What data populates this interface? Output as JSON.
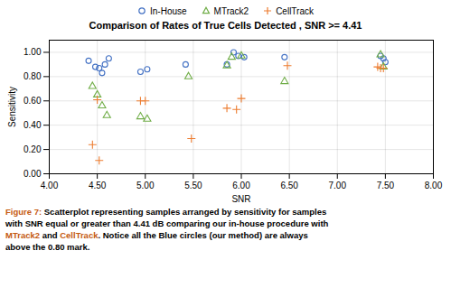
{
  "chart_data": {
    "type": "scatter",
    "title": "Comparison of Rates of True Cells Detected , SNR >= 4.41",
    "xlabel": "SNR",
    "ylabel": "Sensitivity",
    "xlim": [
      4.0,
      8.0
    ],
    "ylim": [
      0.0,
      1.1
    ],
    "xticks": [
      {
        "value": 4.0,
        "label": "4.00"
      },
      {
        "value": 4.5,
        "label": "4.50"
      },
      {
        "value": 5.0,
        "label": "5.00"
      },
      {
        "value": 5.5,
        "label": "5.50"
      },
      {
        "value": 6.0,
        "label": "6.00"
      },
      {
        "value": 6.5,
        "label": "6.50"
      },
      {
        "value": 7.0,
        "label": "7.00"
      },
      {
        "value": 7.5,
        "label": "7.50"
      },
      {
        "value": 8.0,
        "label": "8.00"
      }
    ],
    "yticks": [
      {
        "value": 0.0,
        "label": "0.00"
      },
      {
        "value": 0.2,
        "label": "0.20"
      },
      {
        "value": 0.4,
        "label": "0.40"
      },
      {
        "value": 0.6,
        "label": "0.60"
      },
      {
        "value": 0.8,
        "label": "0.80"
      },
      {
        "value": 1.0,
        "label": "1.00"
      }
    ],
    "grid": true,
    "legend": "top",
    "series": [
      {
        "name": "In-House",
        "color": "#4472c4",
        "marker": "circle",
        "x": [
          4.41,
          4.48,
          4.52,
          4.55,
          4.58,
          4.62,
          4.95,
          5.02,
          5.42,
          5.85,
          5.92,
          5.97,
          6.03,
          6.45,
          7.45,
          7.48,
          7.5
        ],
        "values": [
          0.93,
          0.88,
          0.87,
          0.83,
          0.9,
          0.95,
          0.84,
          0.86,
          0.9,
          0.9,
          1.0,
          0.97,
          0.96,
          0.96,
          0.97,
          0.95,
          0.92
        ]
      },
      {
        "name": "MTrack2",
        "color": "#70ad47",
        "marker": "triangle",
        "x": [
          4.45,
          4.5,
          4.55,
          4.6,
          4.95,
          5.02,
          5.45,
          5.85,
          5.9,
          6.0,
          6.45,
          7.45,
          7.48
        ],
        "values": [
          0.72,
          0.65,
          0.56,
          0.48,
          0.47,
          0.45,
          0.8,
          0.89,
          0.96,
          0.97,
          0.76,
          0.98,
          0.88
        ]
      },
      {
        "name": "CellTrack",
        "color": "#ed7d31",
        "marker": "plus",
        "x": [
          4.45,
          4.5,
          4.52,
          4.95,
          5.0,
          5.48,
          5.85,
          5.95,
          6.0,
          6.48,
          7.42,
          7.45,
          7.48
        ],
        "values": [
          0.24,
          0.61,
          0.11,
          0.6,
          0.6,
          0.29,
          0.54,
          0.53,
          0.62,
          0.89,
          0.88,
          0.87,
          0.87
        ]
      }
    ],
    "annotations": [
      [
        {
          "text": "Figure 7:",
          "color": "#c55a11"
        },
        {
          "text": " Scatterplot representing samples arranged by sensitivity for samples",
          "color": "#000000"
        }
      ],
      [
        {
          "text": "with SNR equal or greater than 4.41 dB comparing our in-house procedure with",
          "color": "#000000"
        }
      ],
      [
        {
          "text": "MTrack2",
          "color": "#c55a11"
        },
        {
          "text": " and ",
          "color": "#000000"
        },
        {
          "text": "CellTrack",
          "color": "#c55a11"
        },
        {
          "text": ". Notice all the Blue circles (our method) are always",
          "color": "#000000"
        }
      ],
      [
        {
          "text": "above the 0.80 mark.",
          "color": "#000000"
        }
      ]
    ]
  }
}
